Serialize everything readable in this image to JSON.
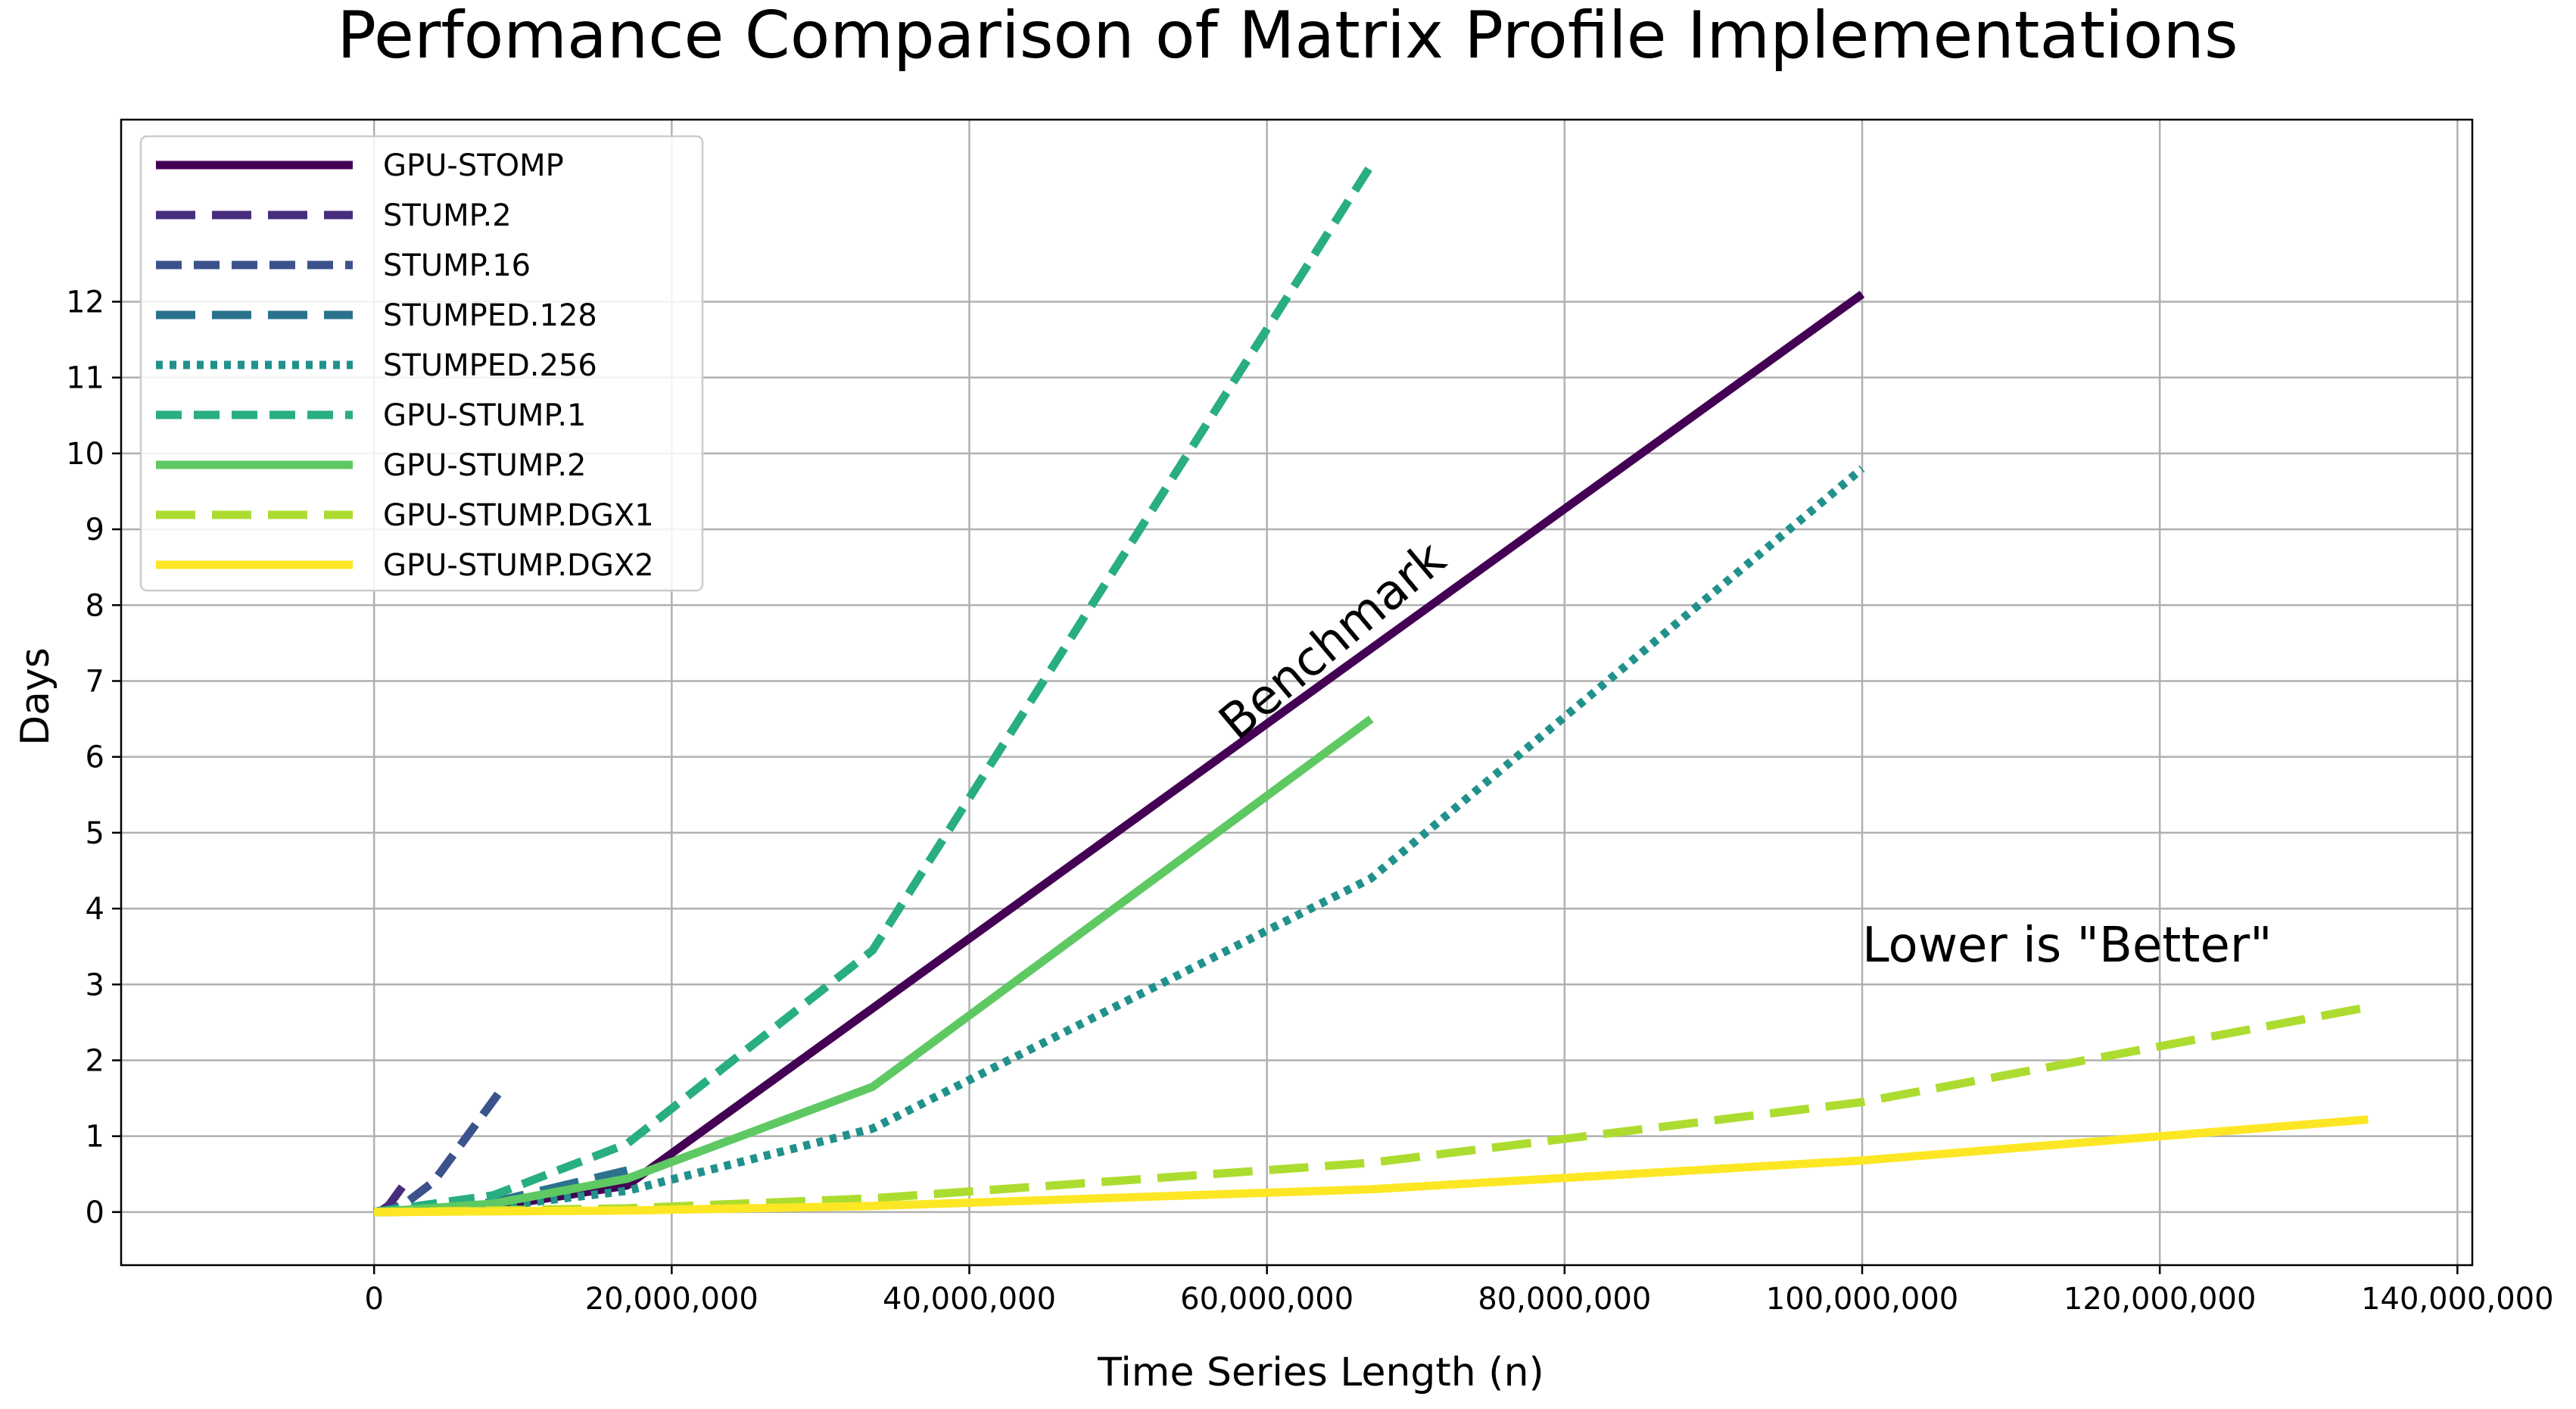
{
  "chart_data": {
    "type": "line",
    "title": "Perfomance Comparison of Matrix Profile Implementations",
    "xlabel": "Time Series Length (n)",
    "ylabel": "Days",
    "xlim": [
      -17000000,
      141000000
    ],
    "ylim": [
      -0.7,
      14.4
    ],
    "xticks": [
      0,
      20000000,
      40000000,
      60000000,
      80000000,
      100000000,
      120000000,
      140000000
    ],
    "xtick_labels": [
      "0",
      "20,000,000",
      "40,000,000",
      "60,000,000",
      "80,000,000",
      "100,000,000",
      "120,000,000",
      "140,000,000"
    ],
    "yticks": [
      0,
      1,
      2,
      3,
      4,
      5,
      6,
      7,
      8,
      9,
      10,
      11,
      12
    ],
    "ytick_labels": [
      "0",
      "1",
      "2",
      "3",
      "4",
      "5",
      "6",
      "7",
      "8",
      "9",
      "10",
      "11",
      "12"
    ],
    "grid": true,
    "legend_position": "top-left",
    "annotations": [
      {
        "text": "Benchmark",
        "x": 58000000,
        "y": 6.2,
        "rotation": -40,
        "size": "large"
      },
      {
        "text": "Lower is \"Better\"",
        "x": 100000000,
        "y": 3.3,
        "rotation": 0,
        "size": "large"
      }
    ],
    "series": [
      {
        "name": "GPU-STOMP",
        "color": "#440154",
        "dash": "solid",
        "x": [
          0,
          1000000,
          2000000,
          4000000,
          8000000,
          17000000,
          100000000
        ],
        "y": [
          0,
          0.001,
          0.004,
          0.017,
          0.067,
          0.35,
          12.1
        ]
      },
      {
        "name": "STUMP.2",
        "color": "#472d7b",
        "dash": "longdash",
        "x": [
          0,
          500000,
          1000000,
          2000000
        ],
        "y": [
          0,
          0.02,
          0.09,
          0.36
        ]
      },
      {
        "name": "STUMP.16",
        "color": "#3b528b",
        "dash": "dash",
        "x": [
          0,
          1000000,
          2000000,
          4000000,
          8500000
        ],
        "y": [
          0,
          0.03,
          0.1,
          0.4,
          1.6
        ]
      },
      {
        "name": "STUMPED.128",
        "color": "#2c728e",
        "dash": "longdash",
        "x": [
          0,
          4000000,
          8000000,
          17000000
        ],
        "y": [
          0,
          0.03,
          0.13,
          0.55
        ]
      },
      {
        "name": "STUMPED.256",
        "color": "#21918c",
        "dash": "dot",
        "x": [
          0,
          8000000,
          17000000,
          33500000,
          67000000,
          100000000
        ],
        "y": [
          0,
          0.07,
          0.28,
          1.1,
          4.4,
          9.8
        ]
      },
      {
        "name": "GPU-STUMP.1",
        "color": "#28ae80",
        "dash": "dash",
        "x": [
          0,
          8000000,
          17000000,
          33500000,
          67000000
        ],
        "y": [
          0,
          0.22,
          0.9,
          3.45,
          13.8
        ]
      },
      {
        "name": "GPU-STUMP.2",
        "color": "#5ec962",
        "dash": "solid",
        "x": [
          0,
          8000000,
          17000000,
          33500000,
          67000000
        ],
        "y": [
          0,
          0.11,
          0.44,
          1.65,
          6.5
        ]
      },
      {
        "name": "GPU-STUMP.DGX1",
        "color": "#addc30",
        "dash": "longdash",
        "x": [
          0,
          17000000,
          33500000,
          67000000,
          100000000,
          134000000
        ],
        "y": [
          0,
          0.05,
          0.18,
          0.65,
          1.45,
          2.7
        ]
      },
      {
        "name": "GPU-STUMP.DGX2",
        "color": "#fde725",
        "dash": "solid",
        "x": [
          0,
          17000000,
          33500000,
          67000000,
          100000000,
          134000000
        ],
        "y": [
          0,
          0.02,
          0.08,
          0.3,
          0.68,
          1.22
        ]
      }
    ]
  }
}
